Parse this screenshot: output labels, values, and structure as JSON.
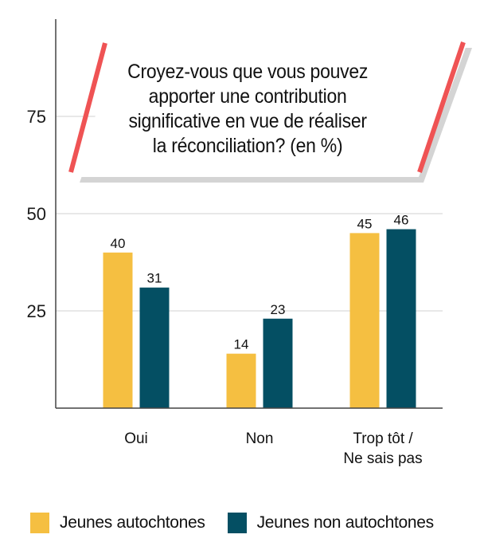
{
  "chart_data": {
    "type": "bar",
    "title": "Croyez-vous que vous pouvez\napporter une contribution\nsignificative en vue de réaliser\nla réconciliation? (en %)",
    "xlabel": "",
    "ylabel": "",
    "ylim": [
      0,
      100
    ],
    "yticks": [
      25,
      50,
      75
    ],
    "grid": true,
    "legend_position": "bottom",
    "categories": [
      "Oui",
      "Non",
      "Trop tôt /\nNe sais pas"
    ],
    "series": [
      {
        "name": "Jeunes autochtones",
        "color": "#F5BF41",
        "values": [
          40,
          14,
          45
        ]
      },
      {
        "name": "Jeunes non autochtones",
        "color": "#044F63",
        "values": [
          31,
          23,
          46
        ]
      }
    ]
  },
  "colors": {
    "accent_slash": "#EF5354",
    "grid": "#d9d9d9",
    "axis": "#444444"
  }
}
